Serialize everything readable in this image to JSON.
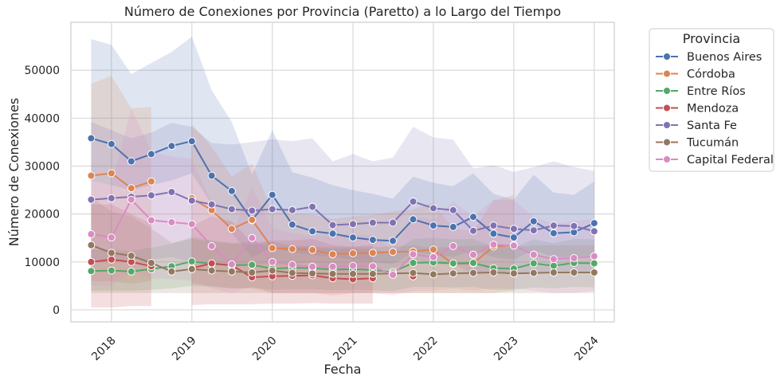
{
  "chart_data": {
    "type": "line",
    "title": "Número de Conexiones por Provincia (Paretto) a lo Largo del Tiempo",
    "xlabel": "Fecha",
    "ylabel": "Número de Conexiones",
    "xlim": [
      "2017-07-01",
      "2024-04-01"
    ],
    "ylim": [
      -2500,
      60000
    ],
    "x_ticks": [
      2018,
      2019,
      2020,
      2021,
      2022,
      2023,
      2024
    ],
    "y_ticks": [
      0,
      10000,
      20000,
      30000,
      40000,
      50000
    ],
    "x_tick_rotation": 45,
    "grid": true,
    "legend": {
      "title": "Provincia",
      "placement": "outside-right"
    },
    "x": [
      "2017-10-01",
      "2018-01-01",
      "2018-04-01",
      "2018-07-01",
      "2018-10-01",
      "2019-01-01",
      "2019-04-01",
      "2019-07-01",
      "2019-10-01",
      "2020-01-01",
      "2020-04-01",
      "2020-07-01",
      "2020-10-01",
      "2021-01-01",
      "2021-04-01",
      "2021-07-01",
      "2021-10-01",
      "2022-01-01",
      "2022-04-01",
      "2022-07-01",
      "2022-10-01",
      "2023-01-01",
      "2023-04-01",
      "2023-07-01",
      "2023-10-01",
      "2024-01-01"
    ],
    "series": [
      {
        "name": "Buenos Aires",
        "color": "#4c72b0",
        "values": [
          35800,
          34600,
          31000,
          32500,
          34200,
          35200,
          28000,
          24800,
          18700,
          24000,
          17800,
          16400,
          15900,
          15100,
          14600,
          14400,
          18900,
          17600,
          17300,
          19400,
          15900,
          15100,
          18500,
          16000,
          16200,
          18100
        ],
        "lower": [
          27000,
          26000,
          25000,
          26000,
          27000,
          28500,
          22000,
          16000,
          11000,
          13000,
          12000,
          11500,
          11000,
          10500,
          10000,
          9500,
          12000,
          11500,
          11000,
          12500,
          11000,
          10500,
          12500,
          11000,
          11000,
          11500
        ],
        "upper": [
          56500,
          55300,
          49200,
          51500,
          53800,
          57000,
          45800,
          39200,
          28200,
          37500,
          28700,
          27600,
          26000,
          25000,
          24200,
          23200,
          27800,
          26500,
          25800,
          28500,
          24200,
          23000,
          28200,
          24500,
          24000,
          26800
        ]
      },
      {
        "name": "Córdoba",
        "color": "#dd8452",
        "values": [
          28000,
          28500,
          25400,
          26800,
          null,
          23300,
          20800,
          16900,
          18800,
          12900,
          12700,
          12500,
          11600,
          11800,
          11900,
          12100,
          12200,
          12600,
          9600,
          9700,
          13200,
          13500,
          null,
          null,
          null,
          null
        ],
        "lower": [
          6000,
          6000,
          5500,
          6000,
          null,
          5500,
          5000,
          4500,
          4500,
          3500,
          3500,
          3500,
          3000,
          3500,
          3500,
          3500,
          3500,
          3500,
          3500,
          3500,
          3500,
          4000,
          null,
          null,
          null,
          null
        ],
        "upper": [
          47200,
          48800,
          42100,
          42300,
          null,
          38800,
          34000,
          27800,
          30500,
          20500,
          20200,
          19800,
          19000,
          19500,
          19800,
          20500,
          21000,
          22400,
          17000,
          16500,
          22800,
          24000,
          null,
          null,
          null,
          null
        ]
      },
      {
        "name": "Entre Ríos",
        "color": "#55a868",
        "values": [
          8100,
          8200,
          8000,
          8500,
          9100,
          10100,
          9600,
          9300,
          9400,
          8600,
          8800,
          8700,
          8400,
          8500,
          8300,
          7900,
          9800,
          9900,
          9700,
          9800,
          8700,
          8600,
          9700,
          9200,
          9800,
          9700
        ],
        "lower": [
          4000,
          4000,
          4000,
          4200,
          4500,
          5000,
          4800,
          4500,
          4600,
          4200,
          4300,
          4300,
          4100,
          4200,
          4100,
          3900,
          4800,
          4800,
          4700,
          4800,
          4200,
          4200,
          4700,
          4500,
          4800,
          4700
        ],
        "upper": [
          12500,
          12600,
          12300,
          13000,
          13800,
          15200,
          14500,
          14000,
          14200,
          13000,
          13300,
          13100,
          12700,
          12800,
          12600,
          12000,
          14800,
          15000,
          14700,
          14800,
          13200,
          13000,
          14700,
          13900,
          14800,
          14700
        ]
      },
      {
        "name": "Mendoza",
        "color": "#c44e52",
        "values": [
          10000,
          10500,
          10000,
          9100,
          null,
          8700,
          9700,
          9300,
          6800,
          7000,
          7100,
          7200,
          6600,
          6400,
          6600,
          null,
          7000,
          null,
          null,
          null,
          null,
          null,
          null,
          null,
          null,
          null
        ],
        "lower": [
          500,
          500,
          800,
          800,
          null,
          1000,
          1200,
          1200,
          1200,
          1300,
          1300,
          1400,
          1300,
          1300,
          1300,
          null,
          2500,
          null,
          null,
          null,
          null,
          null,
          null,
          null,
          null,
          null
        ],
        "upper": [
          22000,
          22000,
          20000,
          18000,
          null,
          17500,
          19500,
          18500,
          14000,
          14500,
          14500,
          14800,
          13500,
          13200,
          13600,
          null,
          14000,
          null,
          null,
          null,
          null,
          null,
          null,
          null,
          null,
          null
        ]
      },
      {
        "name": "Santa Fe",
        "color": "#8172b3",
        "values": [
          23000,
          23300,
          23600,
          23900,
          24600,
          22800,
          22000,
          21000,
          20700,
          21000,
          20800,
          21500,
          17700,
          17900,
          18200,
          18200,
          22600,
          21200,
          20800,
          16500,
          17600,
          16900,
          16600,
          17600,
          17500,
          16400
        ],
        "lower": [
          10000,
          10000,
          10500,
          10500,
          11000,
          10000,
          10000,
          9500,
          9500,
          9500,
          9500,
          10000,
          8000,
          8000,
          8500,
          8500,
          10500,
          9500,
          9500,
          7500,
          8000,
          7500,
          7500,
          8000,
          8000,
          7500
        ],
        "upper": [
          39200,
          37500,
          35800,
          37000,
          39000,
          38200,
          34800,
          34500,
          35000,
          35600,
          35200,
          35800,
          31000,
          32500,
          31000,
          31800,
          38200,
          36000,
          35500,
          29500,
          30200,
          28800,
          29800,
          31000,
          29800,
          29000
        ]
      },
      {
        "name": "Tucumán",
        "color": "#937860",
        "values": [
          13500,
          11900,
          11300,
          9800,
          8000,
          8500,
          8200,
          8000,
          7800,
          8200,
          7700,
          7600,
          7500,
          7500,
          7500,
          7600,
          7700,
          7400,
          7600,
          7700,
          7800,
          7600,
          7700,
          7800,
          7800,
          7800
        ],
        "lower": [
          3500,
          3500,
          3500,
          3500,
          3500,
          3500,
          3500,
          3500,
          3500,
          3500,
          3500,
          3500,
          3500,
          3500,
          3500,
          3500,
          3500,
          3500,
          3500,
          3500,
          3500,
          3500,
          3500,
          3500,
          3500,
          3500
        ],
        "upper": [
          23500,
          20500,
          19500,
          17000,
          14000,
          14800,
          14200,
          13800,
          13500,
          14200,
          13400,
          13200,
          13100,
          13100,
          13100,
          13200,
          13400,
          12900,
          13200,
          13400,
          13500,
          13200,
          13400,
          13500,
          13500,
          13500
        ]
      },
      {
        "name": "Capital Federal",
        "color": "#da8bc3",
        "values": [
          15800,
          15100,
          23000,
          18700,
          18300,
          17900,
          13300,
          9500,
          15000,
          10000,
          9400,
          9000,
          9000,
          9200,
          9100,
          7300,
          11600,
          11000,
          13300,
          11500,
          13600,
          13400,
          11500,
          10600,
          10800,
          11200
        ],
        "lower": [
          5000,
          5000,
          8000,
          6500,
          6500,
          6000,
          4500,
          3500,
          5000,
          3500,
          3500,
          3500,
          3500,
          3500,
          3500,
          3000,
          4000,
          4000,
          4500,
          4000,
          4500,
          4500,
          4000,
          3500,
          3500,
          4000
        ],
        "upper": [
          27000,
          26000,
          42000,
          33000,
          32000,
          31500,
          22500,
          16000,
          25500,
          17000,
          16000,
          15500,
          15500,
          15800,
          15600,
          12500,
          19500,
          18800,
          22500,
          19500,
          23000,
          22800,
          19500,
          18000,
          18500,
          19000
        ]
      }
    ]
  }
}
